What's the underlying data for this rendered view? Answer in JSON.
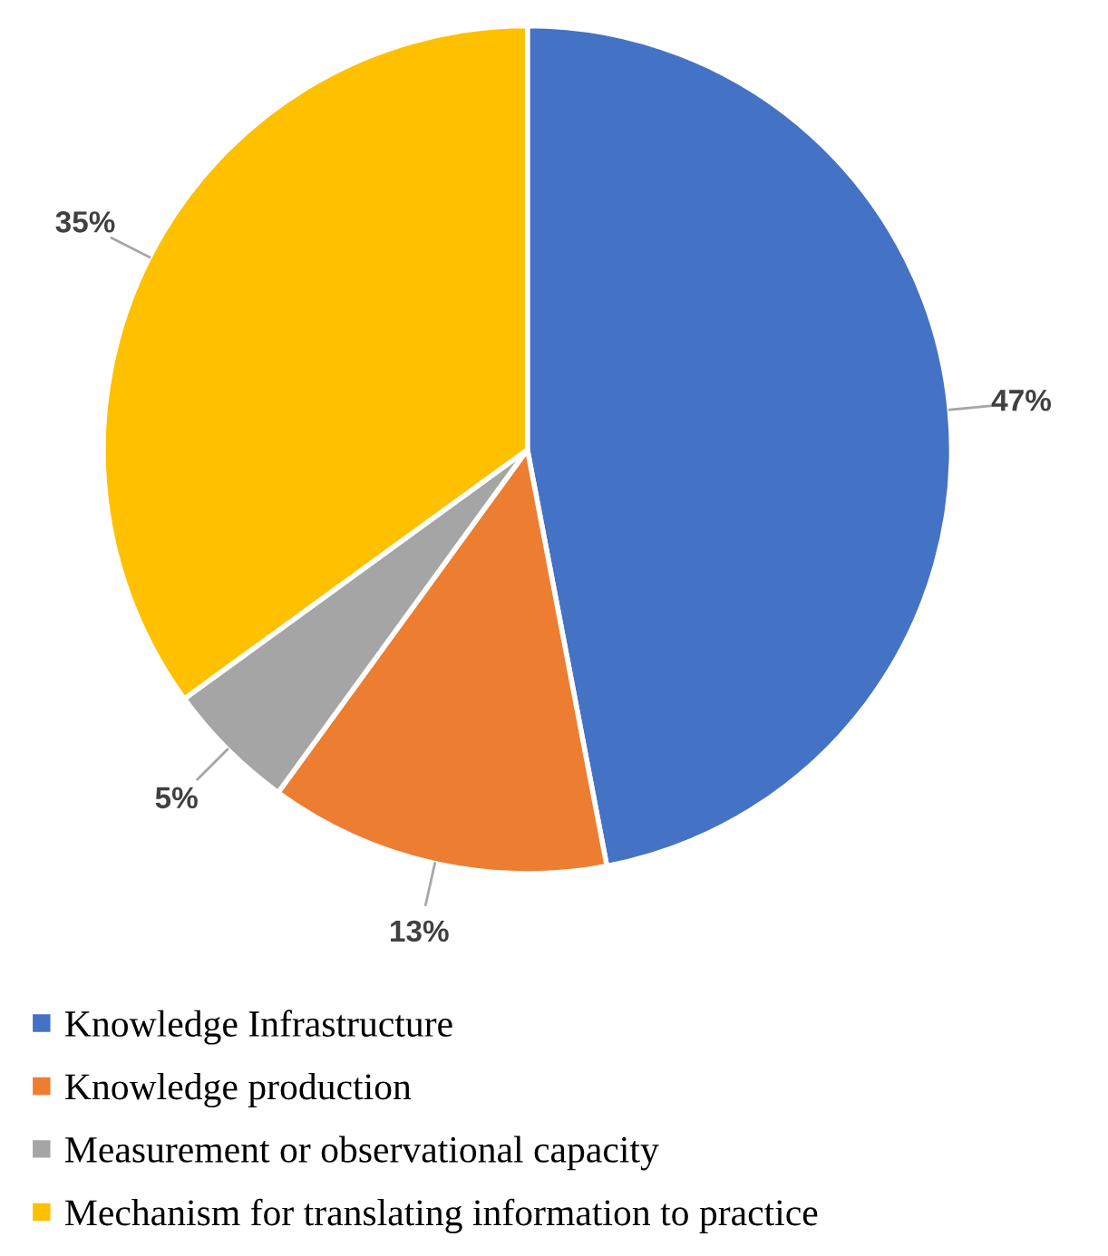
{
  "chart_data": {
    "type": "pie",
    "categories": [
      "Knowledge Infrastructure",
      "Knowledge production",
      "Measurement or observational capacity",
      "Mechanism for translating information to practice"
    ],
    "values": [
      47,
      13,
      5,
      35
    ],
    "colors": [
      "#4472c4",
      "#ed7d31",
      "#a5a5a5",
      "#ffc000"
    ],
    "value_labels": [
      "47%",
      "13%",
      "5%",
      "35%"
    ],
    "legend": "bottom"
  }
}
